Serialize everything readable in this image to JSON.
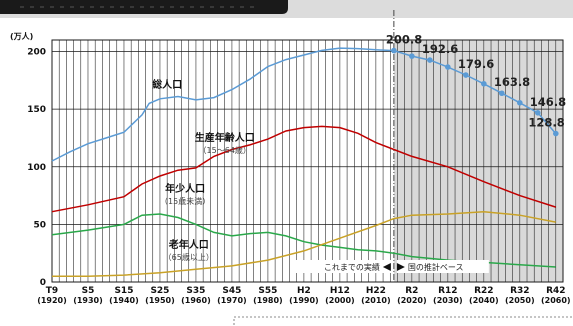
{
  "chart_data": {
    "type": "line",
    "x": [
      "T9",
      "S5",
      "S15",
      "S25",
      "S35",
      "S45",
      "S55",
      "H2",
      "H12",
      "H22",
      "R2",
      "R12",
      "R22",
      "R32",
      "R42"
    ],
    "x_sub": [
      "(1920)",
      "(1930)",
      "(1940)",
      "(1950)",
      "(1960)",
      "(1970)",
      "(1980)",
      "(1990)",
      "(2000)",
      "(2010)",
      "(2020)",
      "(2030)",
      "(2040)",
      "(2050)",
      "(2060)"
    ],
    "x_years": [
      1920,
      1930,
      1940,
      1950,
      1960,
      1970,
      1980,
      1990,
      2000,
      2010,
      2020,
      2030,
      2040,
      2050,
      2060
    ],
    "xlim": [
      1920,
      2062
    ],
    "ylim": [
      0,
      210
    ],
    "y_ticks": [
      0,
      50,
      100,
      150,
      200
    ],
    "y_unit": "(万人)",
    "grid": true,
    "series": [
      {
        "name": "総人口",
        "color": "#5b9bd5",
        "points": [
          [
            1920,
            105
          ],
          [
            1925,
            113
          ],
          [
            1930,
            120
          ],
          [
            1935,
            125
          ],
          [
            1940,
            130
          ],
          [
            1945,
            145
          ],
          [
            1947,
            155
          ],
          [
            1950,
            159
          ],
          [
            1955,
            161
          ],
          [
            1960,
            158
          ],
          [
            1965,
            160
          ],
          [
            1970,
            167
          ],
          [
            1975,
            176
          ],
          [
            1980,
            187
          ],
          [
            1985,
            193
          ],
          [
            1990,
            197
          ],
          [
            1995,
            201
          ],
          [
            2000,
            203
          ],
          [
            2005,
            202.5
          ],
          [
            2010,
            201.5
          ],
          [
            2015,
            200.8
          ],
          [
            2020,
            196
          ],
          [
            2025,
            192.6
          ],
          [
            2030,
            186.5
          ],
          [
            2035,
            179.6
          ],
          [
            2040,
            172
          ],
          [
            2045,
            163.8
          ],
          [
            2050,
            155.5
          ],
          [
            2055,
            146.8
          ],
          [
            2060,
            128.8
          ]
        ],
        "markers": [
          2015,
          2020,
          2025,
          2030,
          2035,
          2040,
          2045,
          2050,
          2055,
          2060
        ]
      },
      {
        "name": "生産年齢人口",
        "sublabel": "（15～64歳）",
        "color": "#c00000",
        "points": [
          [
            1920,
            61
          ],
          [
            1930,
            67
          ],
          [
            1940,
            74
          ],
          [
            1945,
            85
          ],
          [
            1950,
            92
          ],
          [
            1955,
            97
          ],
          [
            1960,
            99
          ],
          [
            1965,
            109
          ],
          [
            1970,
            115
          ],
          [
            1975,
            119
          ],
          [
            1980,
            124
          ],
          [
            1985,
            131
          ],
          [
            1990,
            134
          ],
          [
            1995,
            135
          ],
          [
            2000,
            134
          ],
          [
            2005,
            129
          ],
          [
            2010,
            121
          ],
          [
            2015,
            115
          ],
          [
            2020,
            109
          ],
          [
            2030,
            100
          ],
          [
            2040,
            87
          ],
          [
            2050,
            75
          ],
          [
            2060,
            65
          ]
        ]
      },
      {
        "name": "年少人口",
        "sublabel": "（15歳未満）",
        "color": "#2aa84a",
        "points": [
          [
            1920,
            41
          ],
          [
            1930,
            45
          ],
          [
            1940,
            50
          ],
          [
            1945,
            58
          ],
          [
            1950,
            59
          ],
          [
            1955,
            56
          ],
          [
            1960,
            50
          ],
          [
            1965,
            43
          ],
          [
            1970,
            40
          ],
          [
            1975,
            42
          ],
          [
            1980,
            43
          ],
          [
            1985,
            40
          ],
          [
            1990,
            35
          ],
          [
            1995,
            32
          ],
          [
            2000,
            30
          ],
          [
            2005,
            28
          ],
          [
            2010,
            27
          ],
          [
            2015,
            25
          ],
          [
            2020,
            22
          ],
          [
            2030,
            19
          ],
          [
            2040,
            17
          ],
          [
            2050,
            15
          ],
          [
            2060,
            13
          ]
        ]
      },
      {
        "name": "老年人口",
        "sublabel": "（65歳以上）",
        "color": "#c9a227",
        "points": [
          [
            1920,
            5
          ],
          [
            1930,
            5
          ],
          [
            1940,
            6
          ],
          [
            1950,
            8
          ],
          [
            1960,
            11
          ],
          [
            1970,
            14
          ],
          [
            1980,
            19
          ],
          [
            1990,
            27
          ],
          [
            2000,
            38
          ],
          [
            2010,
            49
          ],
          [
            2015,
            55
          ],
          [
            2020,
            58
          ],
          [
            2030,
            59
          ],
          [
            2040,
            61
          ],
          [
            2050,
            58
          ],
          [
            2060,
            52
          ]
        ]
      }
    ],
    "data_labels": [
      {
        "x": 2015,
        "y": 200.8,
        "text": "200.8"
      },
      {
        "x": 2025,
        "y": 192.6,
        "text": "192.6"
      },
      {
        "x": 2035,
        "y": 179.6,
        "text": "179.6"
      },
      {
        "x": 2045,
        "y": 163.8,
        "text": "163.8"
      },
      {
        "x": 2055,
        "y": 146.8,
        "text": "146.8"
      },
      {
        "x": 2060,
        "y": 128.8,
        "text": "128.8"
      }
    ],
    "boundary_year": 2015,
    "annotation_past": "これまでの実績",
    "annotation_future": "国の推計ベース"
  }
}
